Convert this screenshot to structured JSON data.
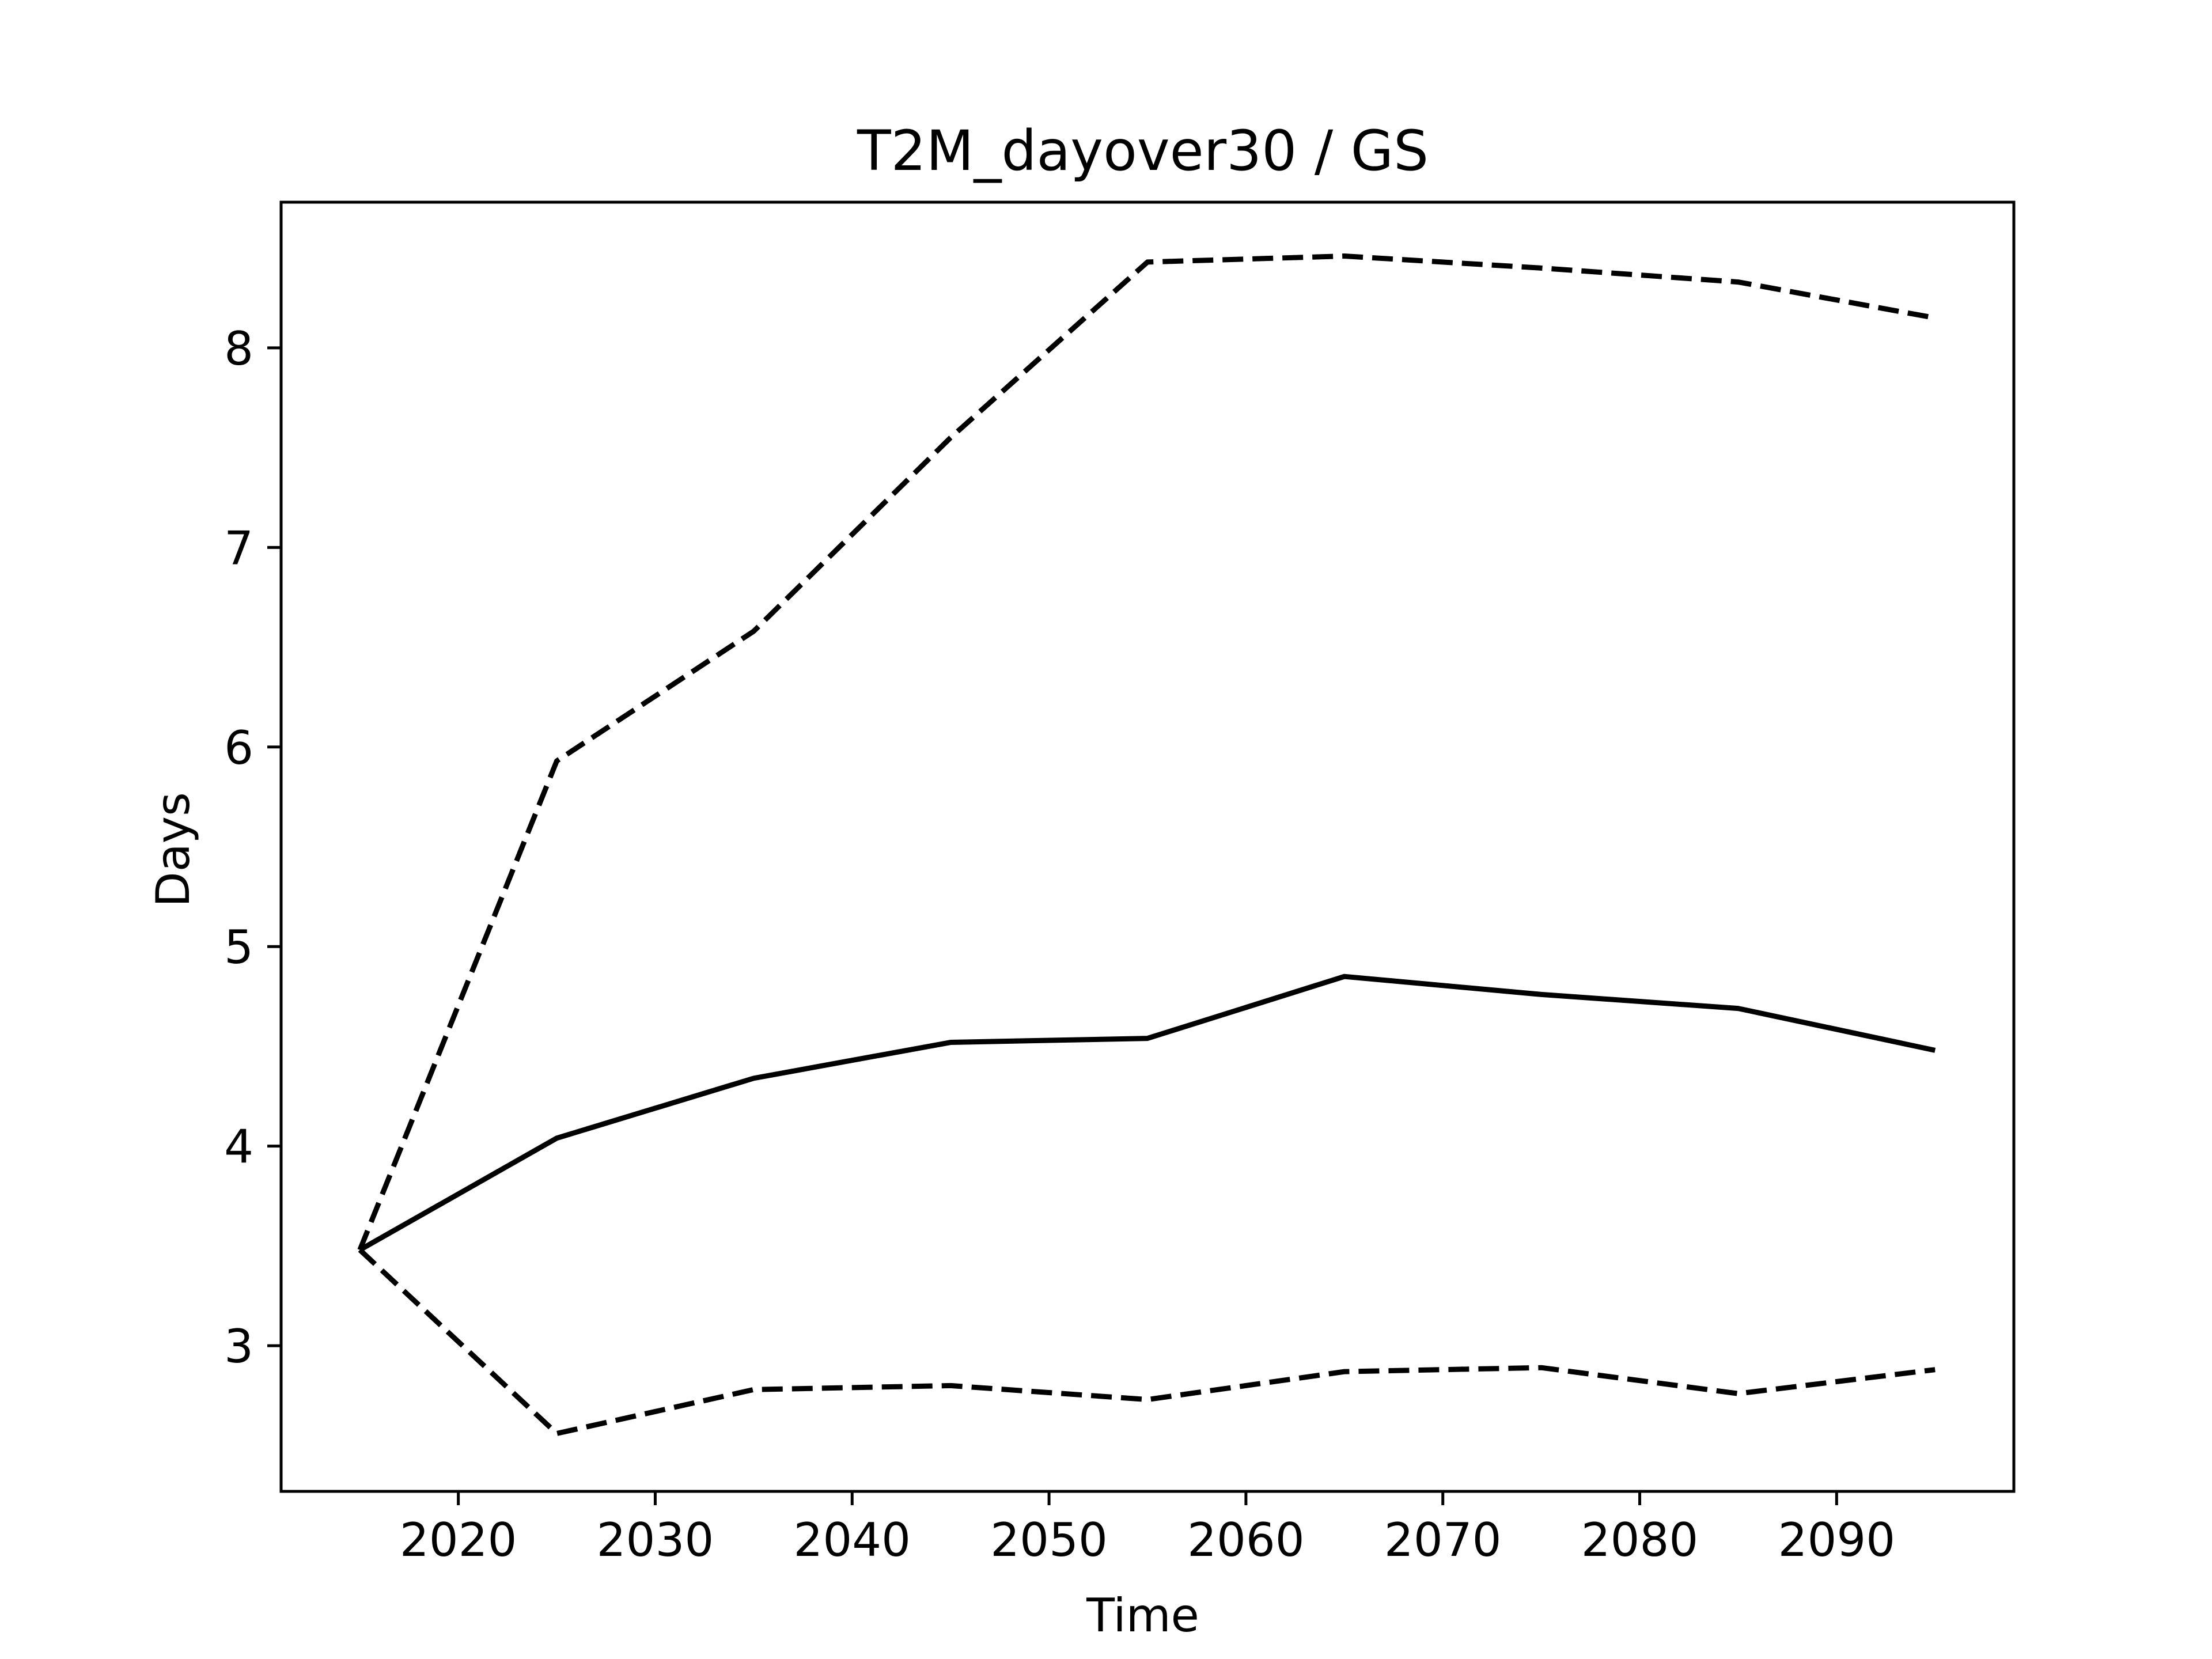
{
  "chart_data": {
    "type": "line",
    "title": "T2M_dayover30 / GS",
    "xlabel": "Time",
    "ylabel": "Days",
    "xlim": [
      2011,
      2099
    ],
    "ylim": [
      2.27,
      8.73
    ],
    "xticks": [
      2020,
      2030,
      2040,
      2050,
      2060,
      2070,
      2080,
      2090
    ],
    "yticks": [
      3,
      4,
      5,
      6,
      7,
      8
    ],
    "grid": false,
    "legend": "none",
    "x": [
      2015,
      2025,
      2035,
      2045,
      2055,
      2065,
      2075,
      2085,
      2095
    ],
    "series": [
      {
        "style": "dashed",
        "color": "#000000",
        "values": [
          3.48,
          5.93,
          6.58,
          7.55,
          8.43,
          8.46,
          8.4,
          8.33,
          8.15
        ]
      },
      {
        "style": "solid",
        "color": "#000000",
        "values": [
          3.48,
          4.04,
          4.34,
          4.52,
          4.54,
          4.85,
          4.76,
          4.69,
          4.48
        ]
      },
      {
        "style": "dashed",
        "color": "#000000",
        "values": [
          3.48,
          2.56,
          2.78,
          2.8,
          2.73,
          2.87,
          2.89,
          2.76,
          2.88
        ]
      }
    ]
  }
}
